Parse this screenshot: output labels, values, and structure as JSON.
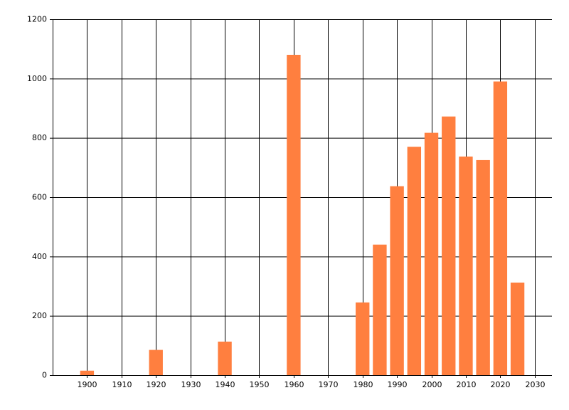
{
  "chart_data": {
    "type": "bar",
    "x": [
      1900,
      1920,
      1940,
      1960,
      1980,
      1985,
      1990,
      1995,
      2000,
      2005,
      2010,
      2015,
      2020,
      2025
    ],
    "values": [
      15,
      85,
      113,
      1080,
      245,
      440,
      637,
      770,
      817,
      872,
      737,
      725,
      990,
      312
    ],
    "color": "#ff7f3f",
    "xlim": [
      1890,
      2035
    ],
    "xticks": [
      1900,
      1910,
      1920,
      1930,
      1940,
      1950,
      1960,
      1970,
      1980,
      1990,
      2000,
      2010,
      2020,
      2030
    ],
    "ylim": [
      0,
      1200
    ],
    "yticks": [
      0,
      200,
      400,
      600,
      800,
      1000,
      1200
    ],
    "grid": true
  }
}
